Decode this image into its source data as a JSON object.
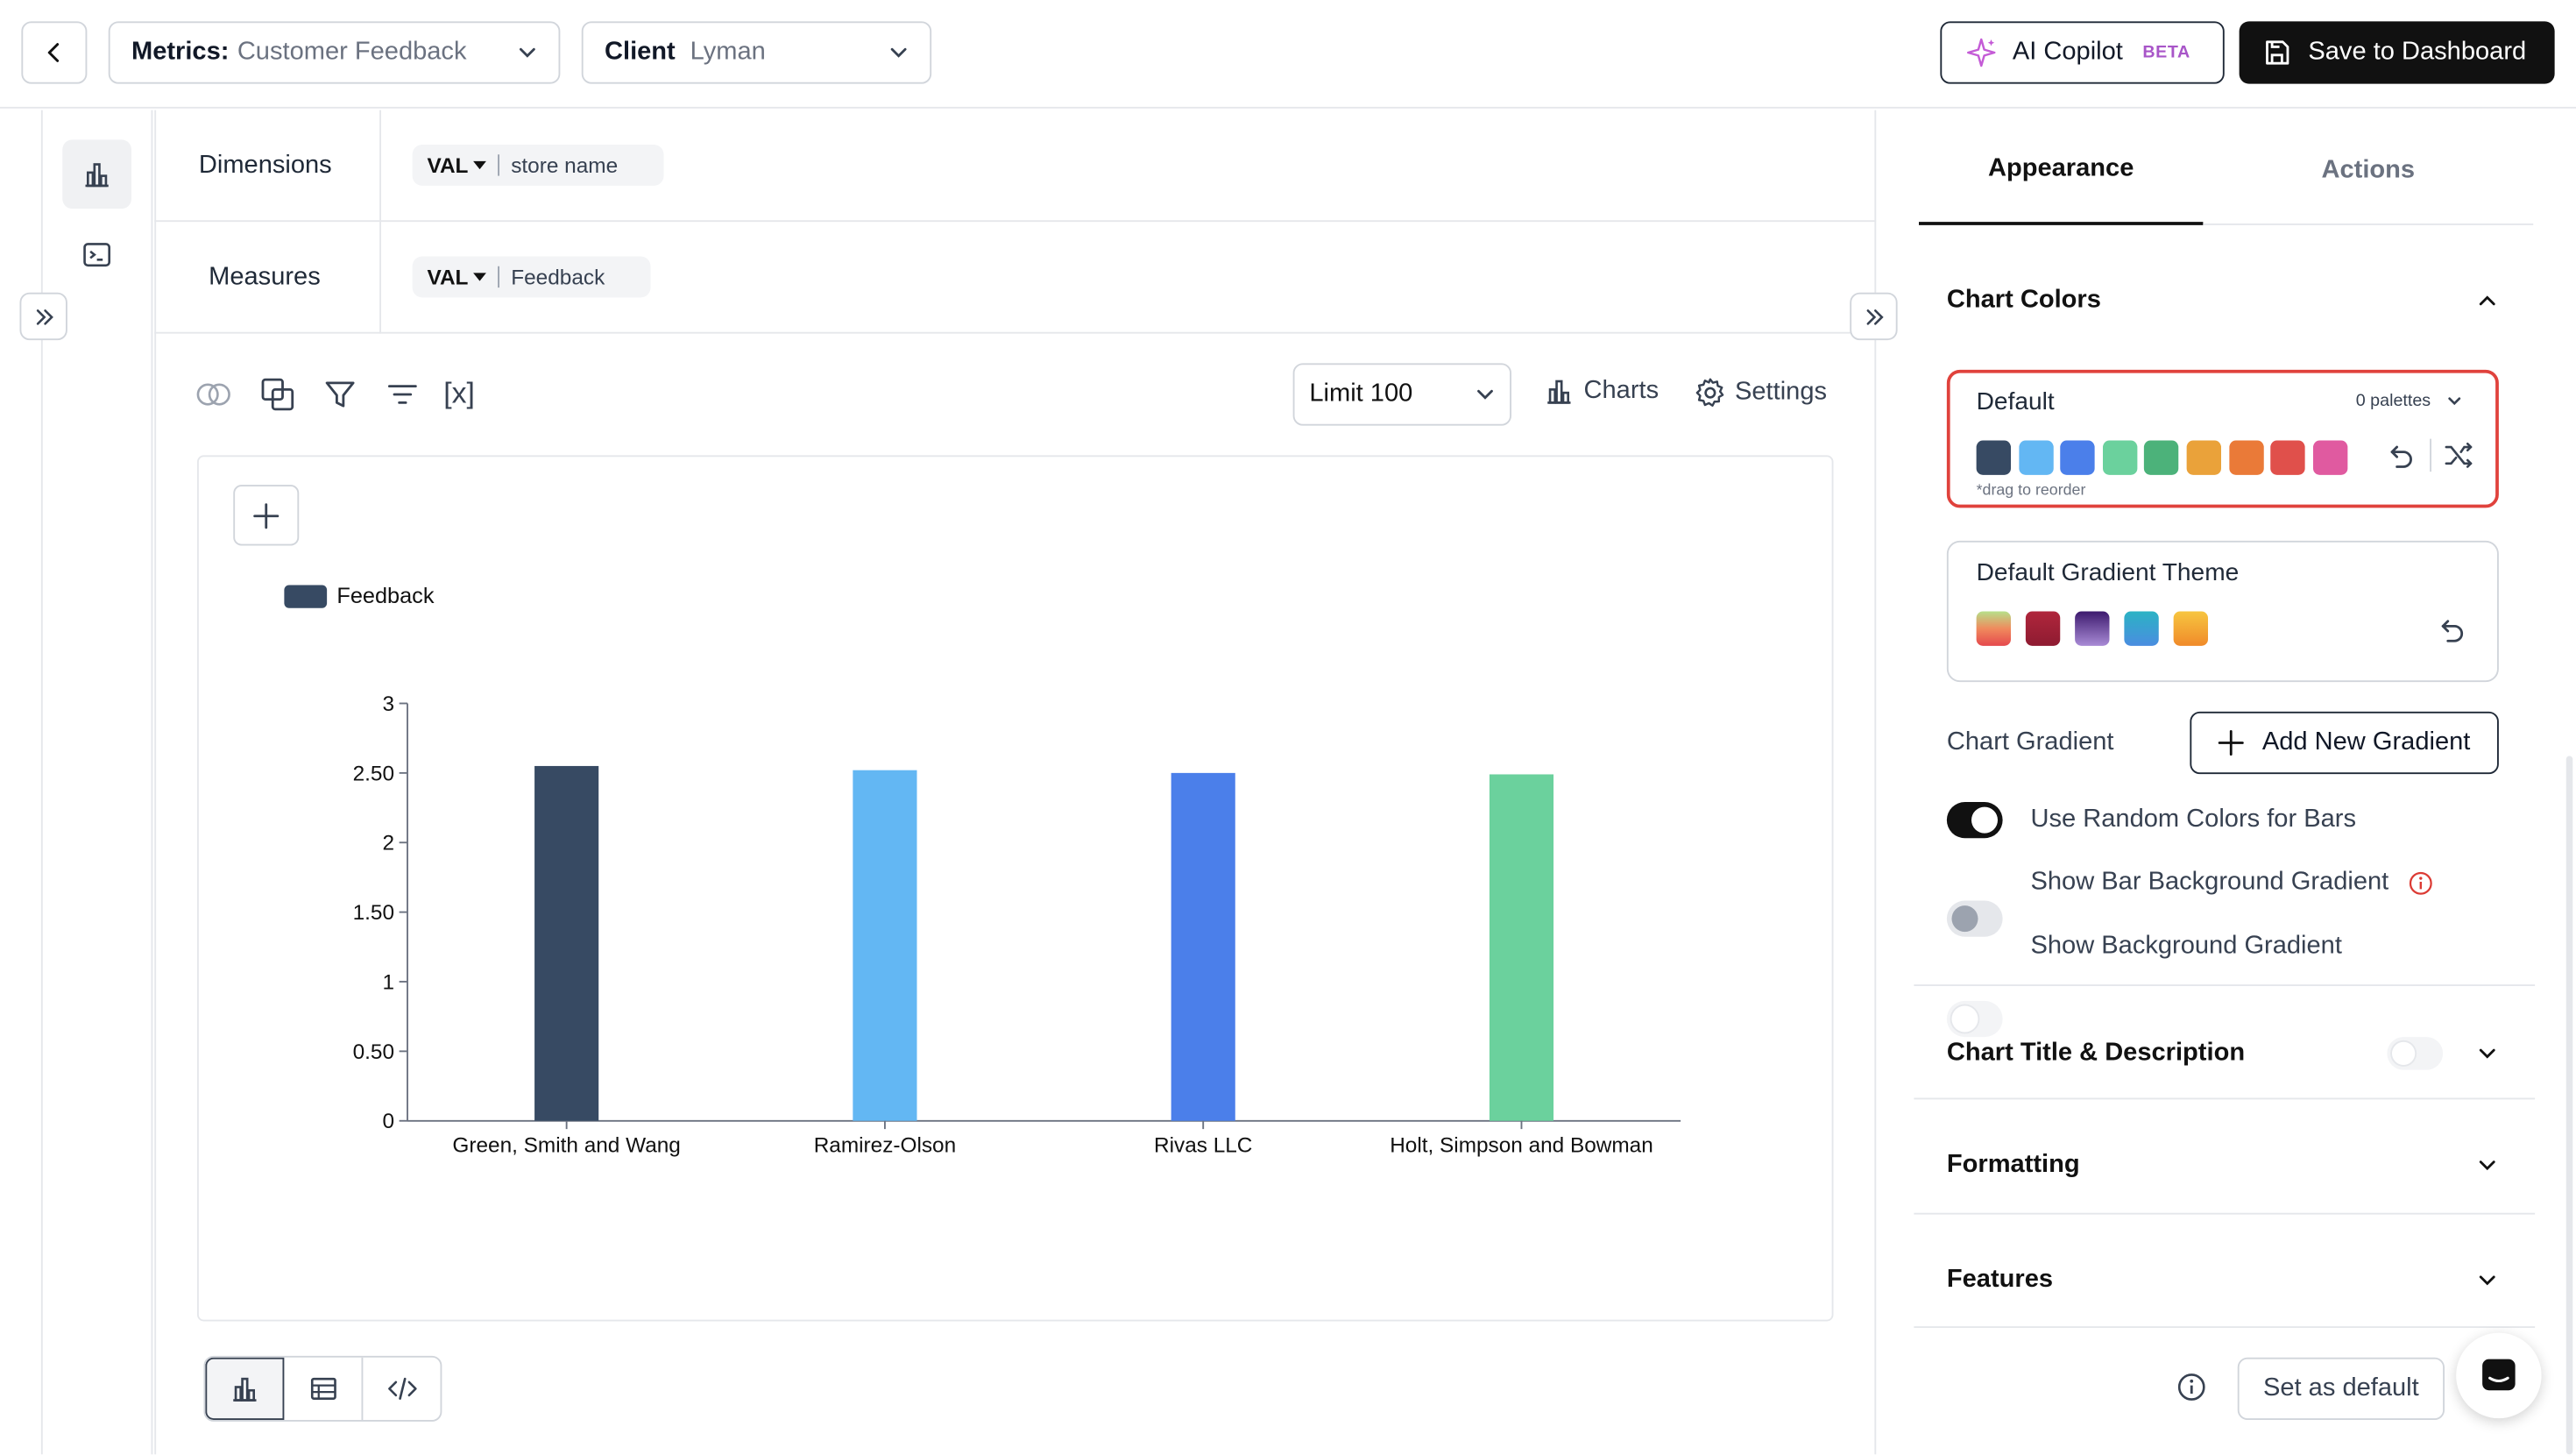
{
  "header": {
    "metrics_label": "Metrics:",
    "metrics_value": "Customer Feedback",
    "client_label": "Client",
    "client_value": "Lyman",
    "ai_copilot": "AI Copilot",
    "ai_badge": "BETA",
    "save_label": "Save to Dashboard"
  },
  "query": {
    "dimensions_label": "Dimensions",
    "dimension_chip": {
      "type": "VAL",
      "field": "store name"
    },
    "measures_label": "Measures",
    "measure_chip": {
      "type": "VAL",
      "field": "Feedback"
    }
  },
  "toolbar": {
    "variables_label": "[x]",
    "limit_label": "Limit 100",
    "charts_label": "Charts",
    "settings_label": "Settings"
  },
  "chart_data": {
    "type": "bar",
    "categories": [
      "Green, Smith and Wang",
      "Ramirez-Olson",
      "Rivas LLC",
      "Holt, Simpson and Bowman"
    ],
    "series": [
      {
        "name": "Feedback",
        "values": [
          2.55,
          2.52,
          2.5,
          2.49
        ]
      }
    ],
    "bar_colors": [
      "#374a63",
      "#63b7f3",
      "#4b7fea",
      "#6bd19d"
    ],
    "legend_color": "#374a63",
    "ylim": [
      0,
      3
    ],
    "yticks": [
      "0",
      "0.50",
      "1",
      "1.50",
      "2",
      "2.50",
      "3"
    ],
    "legend": "top-left",
    "grid": false
  },
  "view_toggle": [
    "chart",
    "table",
    "code"
  ],
  "right_panel": {
    "tabs": [
      {
        "label": "Appearance",
        "active": true
      },
      {
        "label": "Actions",
        "active": false
      }
    ],
    "chart_colors_title": "Chart Colors",
    "palette_name": "Default",
    "palette_count": "0 palettes",
    "palette_swatches": [
      "#374a63",
      "#63b7f3",
      "#4b7fea",
      "#6bd19d",
      "#4cb27a",
      "#eaa23a",
      "#ea7a38",
      "#e0504b",
      "#e05aa0"
    ],
    "drag_hint": "*drag to reorder",
    "gradient_theme_title": "Default Gradient Theme",
    "gradient_swatches": [
      "linear-gradient(180deg,#b7e08a,#f08a5d,#e5484d)",
      "linear-gradient(180deg,#b0263c,#8e1b31)",
      "linear-gradient(180deg,#3d1a6e,#a98bd6)",
      "linear-gradient(180deg,#2bb3c4,#4a8de0)",
      "linear-gradient(180deg,#f7c640,#f08a2a)"
    ],
    "chart_gradient_label": "Chart Gradient",
    "add_gradient_label": "Add New Gradient",
    "toggles": [
      {
        "label": "Use Random Colors for Bars",
        "on": true
      },
      {
        "label": "Show Bar Background Gradient",
        "on": false,
        "info": true
      },
      {
        "label": "Show Background Gradient",
        "on": false
      }
    ],
    "sections": [
      {
        "label": "Chart Title & Description",
        "toggle": true
      },
      {
        "label": "Formatting"
      },
      {
        "label": "Features"
      }
    ],
    "set_default_label": "Set as default"
  }
}
